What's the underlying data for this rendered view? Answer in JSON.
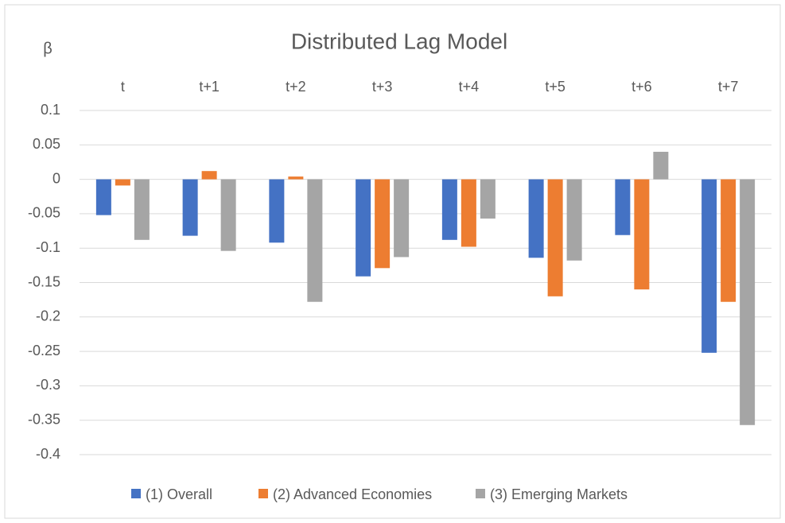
{
  "chart_data": {
    "type": "bar",
    "title": "Distributed Lag Model",
    "y_label": "β",
    "categories": [
      "t",
      "t+1",
      "t+2",
      "t+3",
      "t+4",
      "t+5",
      "t+6",
      "t+7"
    ],
    "series": [
      {
        "name": "(1) Overall",
        "color": "#4472c4",
        "values": [
          -0.052,
          -0.082,
          -0.092,
          -0.141,
          -0.088,
          -0.114,
          -0.081,
          -0.252
        ]
      },
      {
        "name": "(2) Advanced Economies",
        "color": "#ed7d31",
        "values": [
          -0.009,
          0.012,
          0.004,
          -0.129,
          -0.098,
          -0.17,
          -0.16,
          -0.178
        ]
      },
      {
        "name": "(3) Emerging Markets",
        "color": "#a5a5a5",
        "values": [
          -0.088,
          -0.104,
          -0.178,
          -0.113,
          -0.057,
          -0.118,
          0.04,
          -0.357
        ]
      }
    ],
    "ylim": [
      -0.4,
      0.1
    ],
    "yticks": [
      0.1,
      0.05,
      0,
      -0.05,
      -0.1,
      -0.15,
      -0.2,
      -0.25,
      -0.3,
      -0.35,
      -0.4
    ],
    "grid": true,
    "legend": "bottom"
  }
}
